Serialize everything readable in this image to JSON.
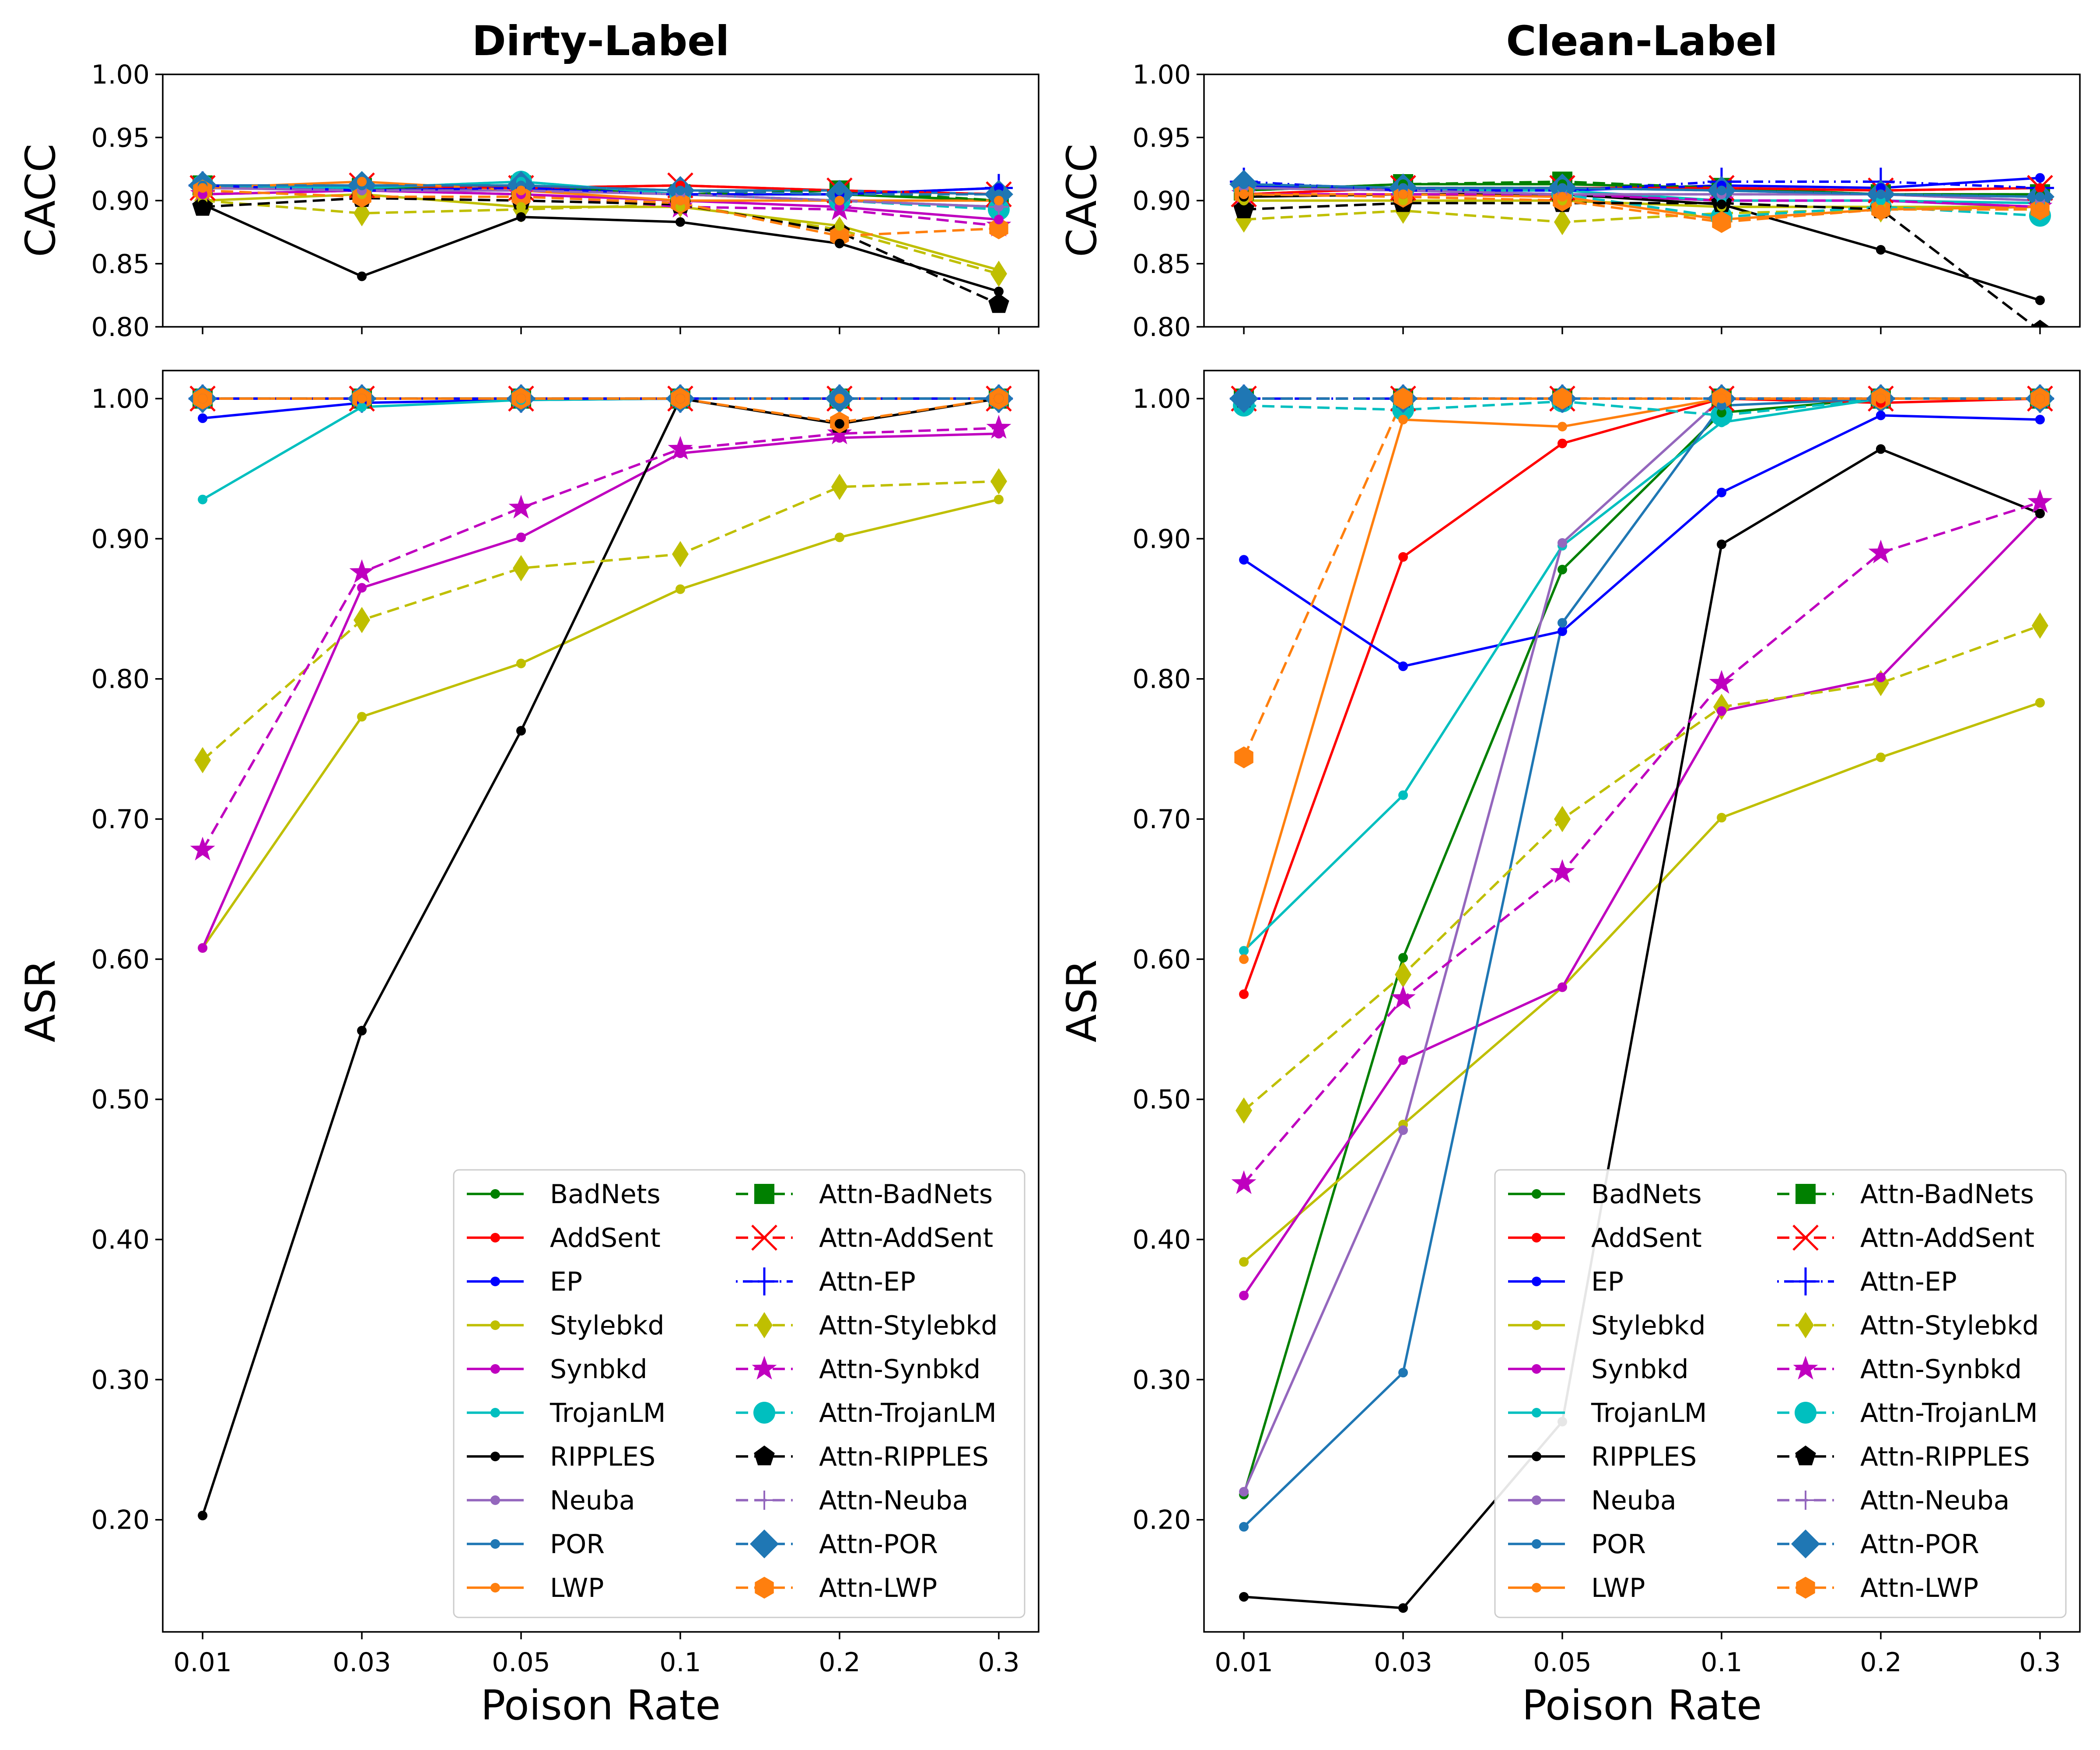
{
  "figure": {
    "left_title": "Dirty-Label",
    "right_title": "Clean-Label",
    "xlabel": "Poison Rate",
    "cacc_ylabel": "CACC",
    "asr_ylabel": "ASR"
  },
  "styles": {
    "BadNets": {
      "color": "#008000",
      "marker": "dot"
    },
    "AddSent": {
      "color": "#ff0000",
      "marker": "dot"
    },
    "EP": {
      "color": "#0000ff",
      "marker": "dot"
    },
    "Stylebkd": {
      "color": "#bfbf00",
      "marker": "dot"
    },
    "Synbkd": {
      "color": "#bf00bf",
      "marker": "dot"
    },
    "TrojanLM": {
      "color": "#00bfbf",
      "marker": "dot"
    },
    "RIPPLES": {
      "color": "#000000",
      "marker": "dot"
    },
    "Neuba": {
      "color": "#9467bd",
      "marker": "dot"
    },
    "POR": {
      "color": "#1f77b4",
      "marker": "dot"
    },
    "LWP": {
      "color": "#ff7f0e",
      "marker": "dot"
    },
    "Attn-BadNets": {
      "color": "#008000",
      "marker": "square"
    },
    "Attn-AddSent": {
      "color": "#ff0000",
      "marker": "x"
    },
    "Attn-EP": {
      "color": "#0000ff",
      "marker": "plus"
    },
    "Attn-Stylebkd": {
      "color": "#bfbf00",
      "marker": "diamond_thin"
    },
    "Attn-Synbkd": {
      "color": "#bf00bf",
      "marker": "star"
    },
    "Attn-TrojanLM": {
      "color": "#00bfbf",
      "marker": "circle"
    },
    "Attn-RIPPLES": {
      "color": "#000000",
      "marker": "pentagon"
    },
    "Attn-Neuba": {
      "color": "#9467bd",
      "marker": "plus_thin"
    },
    "Attn-POR": {
      "color": "#1f77b4",
      "marker": "diamond"
    },
    "Attn-LWP": {
      "color": "#ff7f0e",
      "marker": "hexagon"
    }
  },
  "chart_data": [
    {
      "type": "line",
      "title": "Dirty-Label",
      "ylabel": "CACC",
      "xlabel": "",
      "categories": [
        "0.01",
        "0.03",
        "0.05",
        "0.1",
        "0.2",
        "0.3"
      ],
      "ylim": [
        0.8,
        1.0
      ],
      "yticks": [
        "0.80",
        "0.85",
        "0.90",
        "0.95",
        "1.00"
      ],
      "yticks_values": [
        0.8,
        0.85,
        0.9,
        0.95,
        1.0
      ],
      "series": [
        {
          "name": "BadNets",
          "values": [
            0.912,
            0.91,
            0.912,
            0.905,
            0.905,
            0.9
          ]
        },
        {
          "name": "AddSent",
          "values": [
            0.91,
            0.912,
            0.91,
            0.912,
            0.908,
            0.905
          ]
        },
        {
          "name": "EP",
          "values": [
            0.912,
            0.908,
            0.91,
            0.905,
            0.905,
            0.91
          ]
        },
        {
          "name": "Stylebkd",
          "values": [
            0.9,
            0.905,
            0.895,
            0.895,
            0.88,
            0.845
          ]
        },
        {
          "name": "Synbkd",
          "values": [
            0.905,
            0.908,
            0.905,
            0.9,
            0.895,
            0.885
          ]
        },
        {
          "name": "TrojanLM",
          "values": [
            0.912,
            0.91,
            0.915,
            0.905,
            0.9,
            0.895
          ]
        },
        {
          "name": "RIPPLES",
          "values": [
            0.897,
            0.84,
            0.887,
            0.883,
            0.866,
            0.828
          ]
        },
        {
          "name": "Neuba",
          "values": [
            0.91,
            0.908,
            0.908,
            0.905,
            0.9,
            0.895
          ]
        },
        {
          "name": "POR",
          "values": [
            0.912,
            0.912,
            0.912,
            0.908,
            0.908,
            0.905
          ]
        },
        {
          "name": "LWP",
          "values": [
            0.91,
            0.915,
            0.908,
            0.9,
            0.9,
            0.9
          ]
        },
        {
          "name": "Attn-BadNets",
          "values": [
            0.912,
            0.91,
            0.912,
            0.905,
            0.908,
            0.9
          ]
        },
        {
          "name": "Attn-AddSent",
          "values": [
            0.91,
            0.912,
            0.91,
            0.912,
            0.908,
            0.905
          ]
        },
        {
          "name": "Attn-EP",
          "values": [
            0.912,
            0.908,
            0.91,
            0.905,
            0.905,
            0.91
          ]
        },
        {
          "name": "Attn-Stylebkd",
          "values": [
            0.9,
            0.89,
            0.893,
            0.897,
            0.877,
            0.842
          ]
        },
        {
          "name": "Attn-Synbkd",
          "values": [
            0.905,
            0.908,
            0.905,
            0.895,
            0.893,
            0.88
          ]
        },
        {
          "name": "Attn-TrojanLM",
          "values": [
            0.912,
            0.91,
            0.915,
            0.905,
            0.9,
            0.893
          ]
        },
        {
          "name": "Attn-RIPPLES",
          "values": [
            0.895,
            0.902,
            0.9,
            0.897,
            0.875,
            0.818
          ]
        },
        {
          "name": "Attn-Neuba",
          "values": [
            0.91,
            0.908,
            0.908,
            0.905,
            0.9,
            0.895
          ]
        },
        {
          "name": "Attn-POR",
          "values": [
            0.912,
            0.912,
            0.912,
            0.908,
            0.905,
            0.905
          ]
        },
        {
          "name": "Attn-LWP",
          "values": [
            0.908,
            0.903,
            0.903,
            0.898,
            0.872,
            0.878
          ]
        }
      ]
    },
    {
      "type": "line",
      "title": "Clean-Label",
      "ylabel": "CACC",
      "xlabel": "",
      "categories": [
        "0.01",
        "0.03",
        "0.05",
        "0.1",
        "0.2",
        "0.3"
      ],
      "ylim": [
        0.8,
        1.0
      ],
      "yticks": [
        "0.80",
        "0.85",
        "0.90",
        "0.95",
        "1.00"
      ],
      "yticks_values": [
        0.8,
        0.85,
        0.9,
        0.95,
        1.0
      ],
      "series": [
        {
          "name": "BadNets",
          "values": [
            0.908,
            0.913,
            0.913,
            0.91,
            0.905,
            0.905
          ]
        },
        {
          "name": "AddSent",
          "values": [
            0.905,
            0.91,
            0.91,
            0.91,
            0.908,
            0.91
          ]
        },
        {
          "name": "EP",
          "values": [
            0.912,
            0.908,
            0.908,
            0.912,
            0.91,
            0.918
          ]
        },
        {
          "name": "Stylebkd",
          "values": [
            0.9,
            0.9,
            0.9,
            0.895,
            0.895,
            0.895
          ]
        },
        {
          "name": "Synbkd",
          "values": [
            0.905,
            0.905,
            0.905,
            0.9,
            0.9,
            0.895
          ]
        },
        {
          "name": "TrojanLM",
          "values": [
            0.91,
            0.908,
            0.908,
            0.9,
            0.9,
            0.898
          ]
        },
        {
          "name": "RIPPLES",
          "values": [
            0.903,
            0.905,
            0.905,
            0.897,
            0.861,
            0.821
          ]
        },
        {
          "name": "Neuba",
          "values": [
            0.91,
            0.908,
            0.905,
            0.905,
            0.905,
            0.9
          ]
        },
        {
          "name": "POR",
          "values": [
            0.913,
            0.91,
            0.91,
            0.908,
            0.905,
            0.903
          ]
        },
        {
          "name": "LWP",
          "values": [
            0.905,
            0.905,
            0.903,
            0.885,
            0.893,
            0.895
          ]
        },
        {
          "name": "Attn-BadNets",
          "values": [
            0.908,
            0.913,
            0.915,
            0.91,
            0.905,
            0.905
          ]
        },
        {
          "name": "Attn-AddSent",
          "values": [
            0.905,
            0.91,
            0.91,
            0.91,
            0.908,
            0.91
          ]
        },
        {
          "name": "Attn-EP",
          "values": [
            0.915,
            0.908,
            0.908,
            0.915,
            0.915,
            0.91
          ]
        },
        {
          "name": "Attn-Stylebkd",
          "values": [
            0.885,
            0.892,
            0.883,
            0.89,
            0.893,
            0.893
          ]
        },
        {
          "name": "Attn-Synbkd",
          "values": [
            0.905,
            0.905,
            0.905,
            0.9,
            0.9,
            0.895
          ]
        },
        {
          "name": "Attn-TrojanLM",
          "values": [
            0.91,
            0.908,
            0.905,
            0.887,
            0.895,
            0.888
          ]
        },
        {
          "name": "Attn-RIPPLES",
          "values": [
            0.893,
            0.898,
            0.898,
            0.898,
            0.893,
            0.797
          ]
        },
        {
          "name": "Attn-Neuba",
          "values": [
            0.91,
            0.908,
            0.905,
            0.905,
            0.905,
            0.9
          ]
        },
        {
          "name": "Attn-POR",
          "values": [
            0.913,
            0.91,
            0.91,
            0.908,
            0.905,
            0.903
          ]
        },
        {
          "name": "Attn-LWP",
          "values": [
            0.905,
            0.903,
            0.9,
            0.883,
            0.893,
            0.893
          ]
        }
      ]
    },
    {
      "type": "line",
      "title": "",
      "ylabel": "ASR",
      "xlabel": "Poison Rate",
      "categories": [
        "0.01",
        "0.03",
        "0.05",
        "0.1",
        "0.2",
        "0.3"
      ],
      "ylim": [
        0.12,
        1.02
      ],
      "yticks": [
        "0.20",
        "0.30",
        "0.40",
        "0.50",
        "0.60",
        "0.70",
        "0.80",
        "0.90",
        "1.00"
      ],
      "yticks_values": [
        0.2,
        0.3,
        0.4,
        0.5,
        0.6,
        0.7,
        0.8,
        0.9,
        1.0
      ],
      "legend": "lower-right",
      "series": [
        {
          "name": "BadNets",
          "values": [
            1.0,
            1.0,
            1.0,
            1.0,
            1.0,
            1.0
          ]
        },
        {
          "name": "AddSent",
          "values": [
            1.0,
            1.0,
            1.0,
            1.0,
            1.0,
            1.0
          ]
        },
        {
          "name": "EP",
          "values": [
            0.986,
            0.997,
            0.999,
            1.0,
            1.0,
            1.0
          ]
        },
        {
          "name": "Stylebkd",
          "values": [
            0.608,
            0.773,
            0.811,
            0.864,
            0.901,
            0.928
          ]
        },
        {
          "name": "Synbkd",
          "values": [
            0.608,
            0.865,
            0.901,
            0.961,
            0.972,
            0.975
          ]
        },
        {
          "name": "TrojanLM",
          "values": [
            0.928,
            0.994,
            0.999,
            1.0,
            1.0,
            1.0
          ]
        },
        {
          "name": "RIPPLES",
          "values": [
            0.203,
            0.549,
            0.763,
            1.0,
            0.982,
            1.0
          ]
        },
        {
          "name": "Neuba",
          "values": [
            1.0,
            1.0,
            1.0,
            1.0,
            1.0,
            1.0
          ]
        },
        {
          "name": "POR",
          "values": [
            1.0,
            1.0,
            1.0,
            1.0,
            1.0,
            1.0
          ]
        },
        {
          "name": "LWP",
          "values": [
            1.0,
            1.0,
            1.0,
            1.0,
            1.0,
            1.0
          ]
        },
        {
          "name": "Attn-BadNets",
          "values": [
            1.0,
            1.0,
            1.0,
            1.0,
            1.0,
            1.0
          ]
        },
        {
          "name": "Attn-AddSent",
          "values": [
            1.0,
            1.0,
            1.0,
            1.0,
            1.0,
            1.0
          ]
        },
        {
          "name": "Attn-EP",
          "values": [
            1.0,
            1.0,
            1.0,
            1.0,
            1.0,
            1.0
          ]
        },
        {
          "name": "Attn-Stylebkd",
          "values": [
            0.742,
            0.842,
            0.879,
            0.889,
            0.937,
            0.941
          ]
        },
        {
          "name": "Attn-Synbkd",
          "values": [
            0.678,
            0.876,
            0.922,
            0.964,
            0.975,
            0.979
          ]
        },
        {
          "name": "Attn-TrojanLM",
          "values": [
            1.0,
            1.0,
            1.0,
            1.0,
            1.0,
            1.0
          ]
        },
        {
          "name": "Attn-RIPPLES",
          "values": [
            1.0,
            1.0,
            1.0,
            1.0,
            0.982,
            1.0
          ]
        },
        {
          "name": "Attn-Neuba",
          "values": [
            1.0,
            1.0,
            1.0,
            1.0,
            1.0,
            1.0
          ]
        },
        {
          "name": "Attn-POR",
          "values": [
            1.0,
            1.0,
            1.0,
            1.0,
            1.0,
            1.0
          ]
        },
        {
          "name": "Attn-LWP",
          "values": [
            1.0,
            1.0,
            1.0,
            1.0,
            0.983,
            1.0
          ]
        }
      ]
    },
    {
      "type": "line",
      "title": "",
      "ylabel": "ASR",
      "xlabel": "Poison Rate",
      "categories": [
        "0.01",
        "0.03",
        "0.05",
        "0.1",
        "0.2",
        "0.3"
      ],
      "ylim": [
        0.12,
        1.02
      ],
      "yticks": [
        "0.20",
        "0.30",
        "0.40",
        "0.50",
        "0.60",
        "0.70",
        "0.80",
        "0.90",
        "1.00"
      ],
      "yticks_values": [
        0.2,
        0.3,
        0.4,
        0.5,
        0.6,
        0.7,
        0.8,
        0.9,
        1.0
      ],
      "legend": "lower-right",
      "series": [
        {
          "name": "BadNets",
          "values": [
            0.218,
            0.601,
            0.878,
            0.99,
            1.0,
            1.0
          ]
        },
        {
          "name": "AddSent",
          "values": [
            0.575,
            0.887,
            0.968,
            1.0,
            0.997,
            1.0
          ]
        },
        {
          "name": "EP",
          "values": [
            0.885,
            0.809,
            0.834,
            0.933,
            0.988,
            0.985
          ]
        },
        {
          "name": "Stylebkd",
          "values": [
            0.384,
            0.482,
            0.58,
            0.701,
            0.744,
            0.783
          ]
        },
        {
          "name": "Synbkd",
          "values": [
            0.36,
            0.528,
            0.58,
            0.777,
            0.801,
            0.918
          ]
        },
        {
          "name": "TrojanLM",
          "values": [
            0.606,
            0.717,
            0.895,
            0.983,
            1.0,
            1.0
          ]
        },
        {
          "name": "RIPPLES",
          "values": [
            0.145,
            0.137,
            0.27,
            0.896,
            0.964,
            0.918
          ]
        },
        {
          "name": "Neuba",
          "values": [
            0.22,
            0.478,
            0.897,
            1.0,
            1.0,
            1.0
          ]
        },
        {
          "name": "POR",
          "values": [
            0.195,
            0.305,
            0.84,
            0.995,
            1.0,
            1.0
          ]
        },
        {
          "name": "LWP",
          "values": [
            0.6,
            0.985,
            0.98,
            1.0,
            1.0,
            1.0
          ]
        },
        {
          "name": "Attn-BadNets",
          "values": [
            1.0,
            1.0,
            1.0,
            1.0,
            1.0,
            1.0
          ]
        },
        {
          "name": "Attn-AddSent",
          "values": [
            1.0,
            1.0,
            1.0,
            1.0,
            1.0,
            1.0
          ]
        },
        {
          "name": "Attn-EP",
          "values": [
            1.0,
            1.0,
            1.0,
            1.0,
            1.0,
            1.0
          ]
        },
        {
          "name": "Attn-Stylebkd",
          "values": [
            0.492,
            0.589,
            0.7,
            0.78,
            0.797,
            0.838
          ]
        },
        {
          "name": "Attn-Synbkd",
          "values": [
            0.44,
            0.572,
            0.662,
            0.797,
            0.89,
            0.926
          ]
        },
        {
          "name": "Attn-TrojanLM",
          "values": [
            0.995,
            0.992,
            0.998,
            0.988,
            1.0,
            1.0
          ]
        },
        {
          "name": "Attn-RIPPLES",
          "values": [
            1.0,
            1.0,
            1.0,
            1.0,
            1.0,
            1.0
          ]
        },
        {
          "name": "Attn-Neuba",
          "values": [
            1.0,
            1.0,
            1.0,
            1.0,
            1.0,
            1.0
          ]
        },
        {
          "name": "Attn-POR",
          "values": [
            1.0,
            1.0,
            1.0,
            1.0,
            1.0,
            1.0
          ]
        },
        {
          "name": "Attn-LWP",
          "values": [
            0.744,
            1.0,
            1.0,
            1.0,
            1.0,
            1.0
          ]
        }
      ]
    }
  ]
}
